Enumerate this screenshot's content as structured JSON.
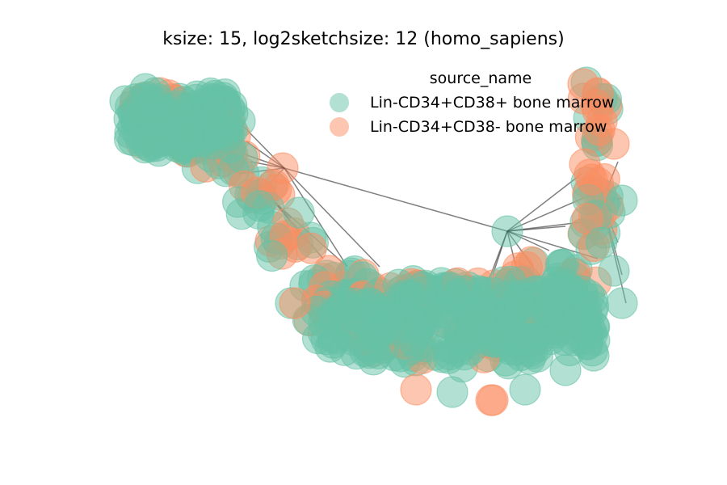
{
  "title": "ksize: 15, log2sketchsize: 12 (homo_sapiens)",
  "legend": {
    "title": "source_name",
    "items": [
      {
        "label": "Lin-CD34+CD38+ bone marrow",
        "color": "#66c2a5"
      },
      {
        "label": "Lin-CD34+CD38- bone marrow",
        "color": "#fc8d62"
      }
    ]
  },
  "style": {
    "node_opacity": 0.5,
    "edge_color": "#000000",
    "edge_opacity": 0.5
  }
}
